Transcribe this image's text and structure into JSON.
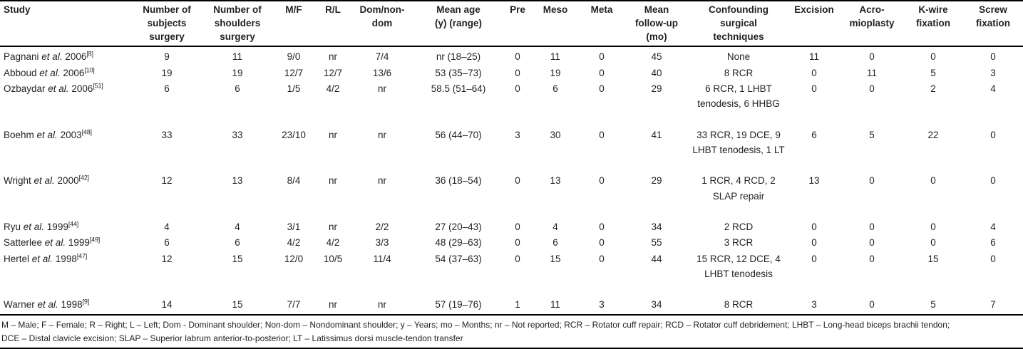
{
  "table": {
    "etal": "et al.",
    "columns": [
      {
        "key": "study",
        "lines": [
          "Study"
        ]
      },
      {
        "key": "num-subjects-surgery",
        "lines": [
          "Number of",
          "subjects",
          "surgery"
        ]
      },
      {
        "key": "num-shoulders-surgery",
        "lines": [
          "Number of",
          "shoulders",
          "surgery"
        ]
      },
      {
        "key": "male-female",
        "lines": [
          "M/F"
        ]
      },
      {
        "key": "right-left",
        "lines": [
          "R/L"
        ]
      },
      {
        "key": "dom-nondom",
        "lines": [
          "Dom/non-",
          "dom"
        ]
      },
      {
        "key": "mean-age",
        "lines": [
          "Mean age",
          "(y) (range)"
        ]
      },
      {
        "key": "pre",
        "lines": [
          "Pre"
        ]
      },
      {
        "key": "meso",
        "lines": [
          "Meso"
        ]
      },
      {
        "key": "meta",
        "lines": [
          "Meta"
        ]
      },
      {
        "key": "mean-follow-up",
        "lines": [
          "Mean",
          "follow-up",
          "(mo)"
        ]
      },
      {
        "key": "confounding-techniques",
        "lines": [
          "Confounding",
          "surgical",
          "techniques"
        ]
      },
      {
        "key": "excision",
        "lines": [
          "Excision"
        ]
      },
      {
        "key": "acromioplasty",
        "lines": [
          "Acro-",
          "mioplasty"
        ]
      },
      {
        "key": "kwire-fixation",
        "lines": [
          "K-wire",
          "fixation"
        ]
      },
      {
        "key": "screw-fixation",
        "lines": [
          "Screw",
          "fixation"
        ]
      }
    ],
    "rows": [
      {
        "author": "Pagnani",
        "year": "2006",
        "ref": "[8]",
        "values": [
          "9",
          "11",
          "9/0",
          "nr",
          "7/4",
          "nr (18–25)",
          "0",
          "11",
          "0",
          "45",
          "None",
          "11",
          "0",
          "0",
          "0"
        ]
      },
      {
        "author": "Abboud",
        "year": "2006",
        "ref": "[10]",
        "values": [
          "19",
          "19",
          "12/7",
          "12/7",
          "13/6",
          "53 (35–73)",
          "0",
          "19",
          "0",
          "40",
          "8 RCR",
          "0",
          "11",
          "5",
          "3"
        ]
      },
      {
        "author": "Ozbaydar",
        "year": "2006",
        "ref": "[51]",
        "values": [
          "6",
          "6",
          "1/5",
          "4/2",
          "nr",
          "58.5 (51–64)",
          "0",
          "6",
          "0",
          "29",
          "6 RCR, 1 LHBT tenodesis, 6 HHBG",
          "0",
          "0",
          "2",
          "4"
        ]
      },
      {
        "author": "Boehm",
        "year": "2003",
        "ref": "[48]",
        "values": [
          "33",
          "33",
          "23/10",
          "nr",
          "nr",
          "56 (44–70)",
          "3",
          "30",
          "0",
          "41",
          "33 RCR, 19 DCE, 9 LHBT tenodesis, 1 LT",
          "6",
          "5",
          "22",
          "0"
        ]
      },
      {
        "author": "Wright",
        "year": "2000",
        "ref": "[42]",
        "values": [
          "12",
          "13",
          "8/4",
          "nr",
          "nr",
          "36 (18–54)",
          "0",
          "13",
          "0",
          "29",
          "1 RCR, 4 RCD, 2 SLAP repair",
          "13",
          "0",
          "0",
          "0"
        ]
      },
      {
        "author": "Ryu",
        "year": "1999",
        "ref": "[44]",
        "values": [
          "4",
          "4",
          "3/1",
          "nr",
          "2/2",
          "27 (20–43)",
          "0",
          "4",
          "0",
          "34",
          "2 RCD",
          "0",
          "0",
          "0",
          "4"
        ]
      },
      {
        "author": "Satterlee",
        "year": "1999",
        "ref": "[49]",
        "values": [
          "6",
          "6",
          "4/2",
          "4/2",
          "3/3",
          "48 (29–63)",
          "0",
          "6",
          "0",
          "55",
          "3 RCR",
          "0",
          "0",
          "0",
          "6"
        ]
      },
      {
        "author": "Hertel",
        "year": "1998",
        "ref": "[47]",
        "values": [
          "12",
          "15",
          "12/0",
          "10/5",
          "11/4",
          "54 (37–63)",
          "0",
          "15",
          "0",
          "44",
          "15 RCR, 12 DCE, 4 LHBT tenodesis",
          "0",
          "0",
          "15",
          "0"
        ]
      },
      {
        "author": "Warner",
        "year": "1998",
        "ref": "[9]",
        "values": [
          "14",
          "15",
          "7/7",
          "nr",
          "nr",
          "57 (19–76)",
          "1",
          "11",
          "3",
          "34",
          "8 RCR",
          "3",
          "0",
          "5",
          "7"
        ]
      }
    ]
  },
  "footnotes": [
    "M – Male; F – Female; R – Right; L – Left; Dom - Dominant shoulder; Non-dom – Nondominant shoulder; y – Years; mo – Months; nr – Not reported; RCR – Rotator cuff repair; RCD – Rotator cuff debridement; LHBT – Long-head biceps brachii tendon;",
    "DCE – Distal clavicle excision; SLAP – Superior labrum anterior-to-posterior; LT – Latissimus dorsi muscle-tendon transfer"
  ]
}
